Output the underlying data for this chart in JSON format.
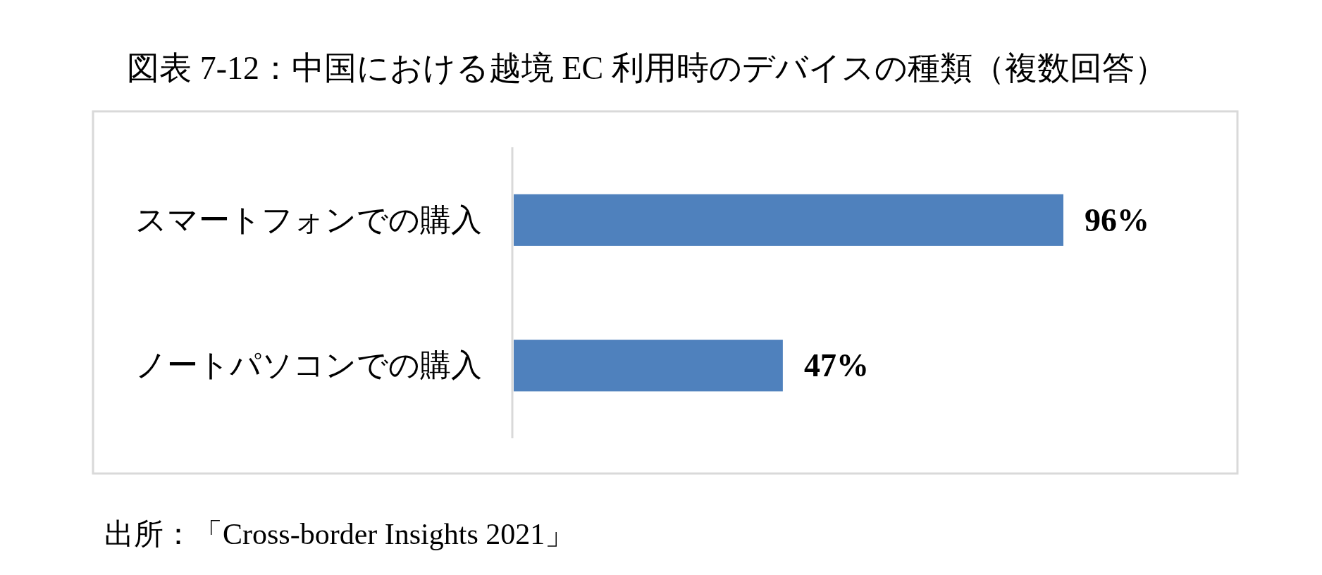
{
  "chart_data": {
    "type": "bar",
    "orientation": "horizontal",
    "title": "図表 7-12：中国における越境 EC 利用時のデバイスの種類（複数回答）",
    "categories": [
      "スマートフォンでの購入",
      "ノートパソコンでの購入"
    ],
    "values": [
      96,
      47
    ],
    "value_labels": [
      "96%",
      "47%"
    ],
    "color": "#4f81bd",
    "annotations": [
      "出所：「Cross-border Insights 2021」"
    ]
  }
}
